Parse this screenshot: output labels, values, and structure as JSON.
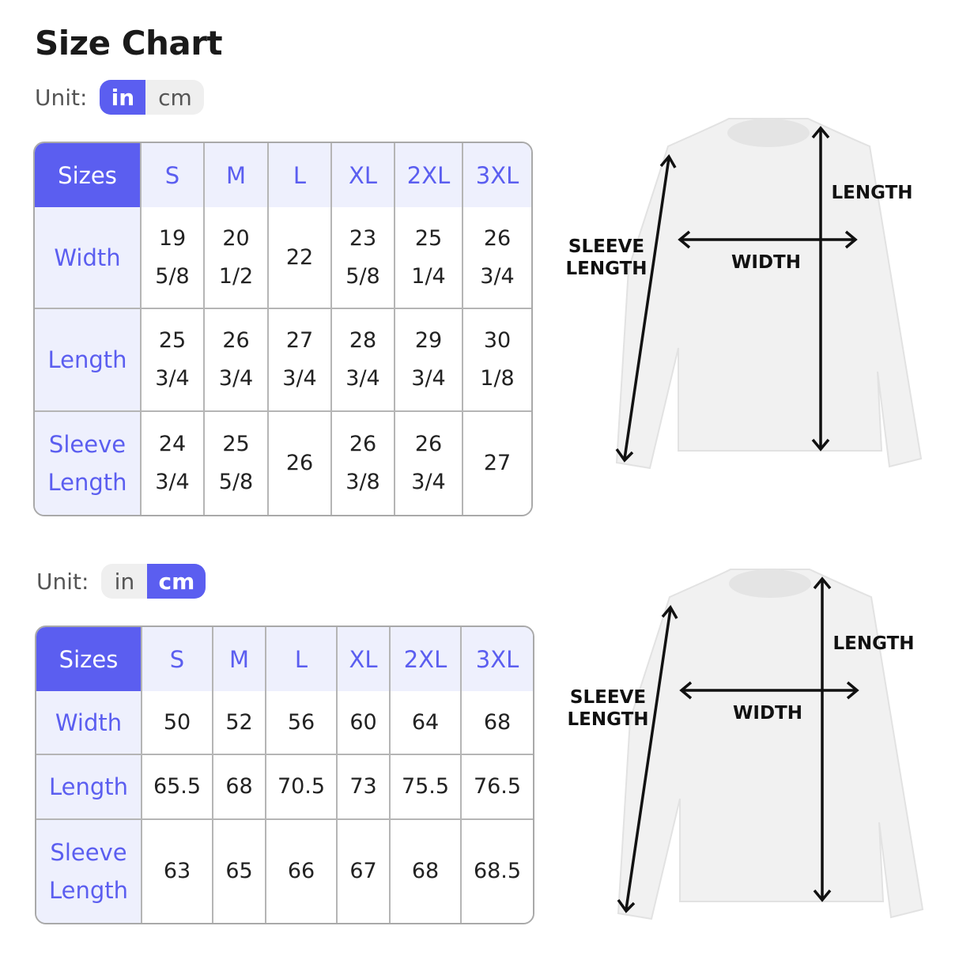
{
  "title": "Size Chart",
  "accent_color": "#5b5ef0",
  "charts": [
    {
      "unit_label": "Unit:",
      "unit_options": [
        "in",
        "cm"
      ],
      "selected_unit": "in",
      "corner": "Sizes",
      "sizes": [
        "S",
        "M",
        "L",
        "XL",
        "2XL",
        "3XL"
      ],
      "rows": [
        {
          "label": "Width",
          "values": [
            "19 5/8",
            "20 1/2",
            "22",
            "23 5/8",
            "25 1/4",
            "26 3/4"
          ]
        },
        {
          "label": "Length",
          "values": [
            "25 3/4",
            "26 3/4",
            "27 3/4",
            "28 3/4",
            "29 3/4",
            "30 1/8"
          ]
        },
        {
          "label": "Sleeve Length",
          "values": [
            "24 3/4",
            "25 5/8",
            "26",
            "26 3/8",
            "26 3/4",
            "27"
          ]
        }
      ],
      "diagram": {
        "length": "LENGTH",
        "width": "WIDTH",
        "sleeve": "SLEEVE LENGTH"
      }
    },
    {
      "unit_label": "Unit:",
      "unit_options": [
        "in",
        "cm"
      ],
      "selected_unit": "cm",
      "corner": "Sizes",
      "sizes": [
        "S",
        "M",
        "L",
        "XL",
        "2XL",
        "3XL"
      ],
      "rows": [
        {
          "label": "Width",
          "values": [
            "50",
            "52",
            "56",
            "60",
            "64",
            "68"
          ]
        },
        {
          "label": "Length",
          "values": [
            "65.5",
            "68",
            "70.5",
            "73",
            "75.5",
            "76.5"
          ]
        },
        {
          "label": "Sleeve Length",
          "values": [
            "63",
            "65",
            "66",
            "67",
            "68",
            "68.5"
          ]
        }
      ],
      "diagram": {
        "length": "LENGTH",
        "width": "WIDTH",
        "sleeve": "SLEEVE LENGTH"
      }
    }
  ]
}
